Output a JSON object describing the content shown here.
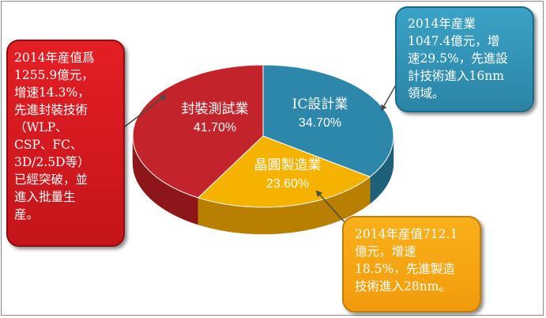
{
  "chart_data": {
    "type": "pie",
    "slices": [
      {
        "label": "封裝測試業",
        "value_label": "41.70%",
        "value": 41.7,
        "color": "#c3242b",
        "side": "#8c1619"
      },
      {
        "label": "IC設計業",
        "value_label": "34.70%",
        "value": 34.7,
        "color": "#2d87aa",
        "side": "#1e6079"
      },
      {
        "label": "晶圓製造業",
        "value_label": "23.60%",
        "value": 23.6,
        "color": "#f5b200",
        "side": "#b97f00"
      }
    ]
  },
  "callouts": {
    "packaging": "2014年産值爲\n1255.9億元，\n增速14.3%，\n先進封裝技術\n（WLP、\nCSP、FC、\n3D/2.5D等）\n已經突破，並\n進入批量生\n産。",
    "ic": "2014年産業\n1047.4億元，增\n速29.5%，先進設\n計技術進入16nm\n領域。",
    "foundry": "2014年産值712.1\n億元，增速\n18.5%，先進製造\n技術進入28nm。"
  },
  "colors": {
    "packaging": "#d91c22",
    "ic": "#3196bb",
    "foundry": "#f5a80f"
  }
}
